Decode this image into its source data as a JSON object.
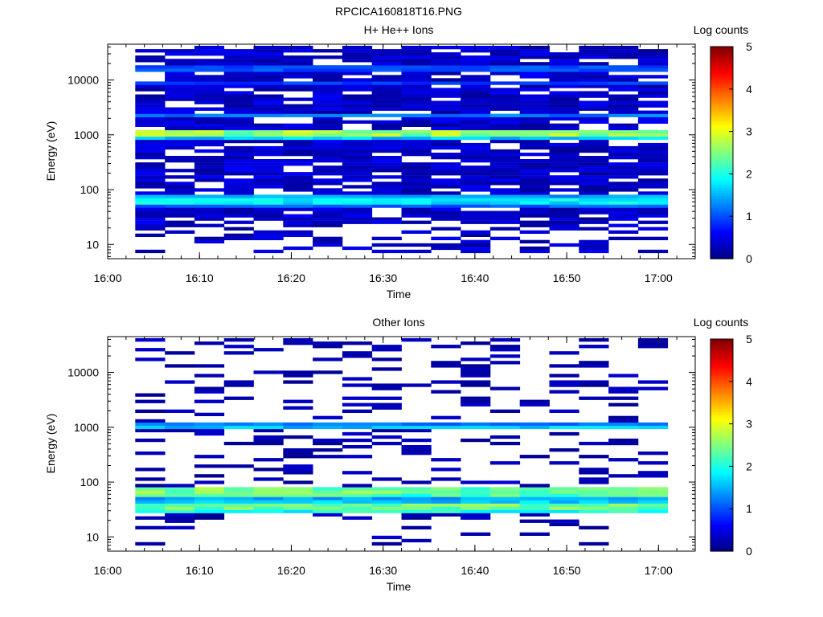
{
  "figure_title": "RPCICA160818T16.PNG",
  "colorbar_scale": {
    "colormap": "jet",
    "range": [
      0,
      5
    ],
    "ticks": [
      "0",
      "1",
      "2",
      "3",
      "4",
      "5"
    ]
  },
  "chart_data": [
    {
      "type": "heatmap",
      "title": "H+ He++ Ions",
      "xlabel": "Time",
      "ylabel": "Energy (eV)",
      "colorbar_label": "Log counts",
      "x_ticks": [
        "16:00",
        "16:10",
        "16:20",
        "16:30",
        "16:40",
        "16:50",
        "17:00"
      ],
      "y_ticks": [
        "10",
        "100",
        "1000",
        "10000"
      ],
      "y_scale": "log",
      "ylim": [
        5.5,
        45000
      ],
      "xlim": [
        "16:00",
        "17:04"
      ],
      "data_start": "16:03",
      "data_end": "17:01",
      "time_columns": 18,
      "energy_bins": 64,
      "emin": 7,
      "emax": 42000,
      "bands": [
        {
          "energy": 1050,
          "log_counts": 2.6
        },
        {
          "energy": 1180,
          "log_counts": 2.0
        },
        {
          "energy": 940,
          "log_counts": 1.6
        },
        {
          "energy": 62,
          "log_counts": 1.8
        },
        {
          "energy": 70,
          "log_counts": 1.4
        },
        {
          "energy": 55,
          "log_counts": 1.1
        },
        {
          "energy": 2200,
          "log_counts": 1.2
        },
        {
          "energy": 16000,
          "log_counts": 1.0
        },
        {
          "energy": 9000,
          "log_counts": 0.9
        }
      ],
      "background_log_counts": 0.3,
      "coverage": 0.8,
      "low_energy_cutoff": 25,
      "seed": 7
    },
    {
      "type": "heatmap",
      "title": "Other Ions",
      "xlabel": "Time",
      "ylabel": "Energy (eV)",
      "colorbar_label": "Log counts",
      "x_ticks": [
        "16:00",
        "16:10",
        "16:20",
        "16:30",
        "16:40",
        "16:50",
        "17:00"
      ],
      "y_ticks": [
        "10",
        "100",
        "1000",
        "10000"
      ],
      "y_scale": "log",
      "ylim": [
        5.5,
        45000
      ],
      "xlim": [
        "16:00",
        "17:04"
      ],
      "data_start": "16:03",
      "data_end": "17:01",
      "time_columns": 18,
      "energy_bins": 64,
      "emin": 7,
      "emax": 42000,
      "bands": [
        {
          "energy": 1020,
          "log_counts": 1.6
        },
        {
          "energy": 1150,
          "log_counts": 1.2
        },
        {
          "energy": 70,
          "log_counts": 2.4
        },
        {
          "energy": 62,
          "log_counts": 2.2
        },
        {
          "energy": 35,
          "log_counts": 2.4
        },
        {
          "energy": 31,
          "log_counts": 2.0
        },
        {
          "energy": 40,
          "log_counts": 1.6
        },
        {
          "energy": 55,
          "log_counts": 1.4
        }
      ],
      "background_log_counts": 0.2,
      "coverage": 0.25,
      "low_energy_cutoff": 25,
      "seed": 19
    }
  ]
}
